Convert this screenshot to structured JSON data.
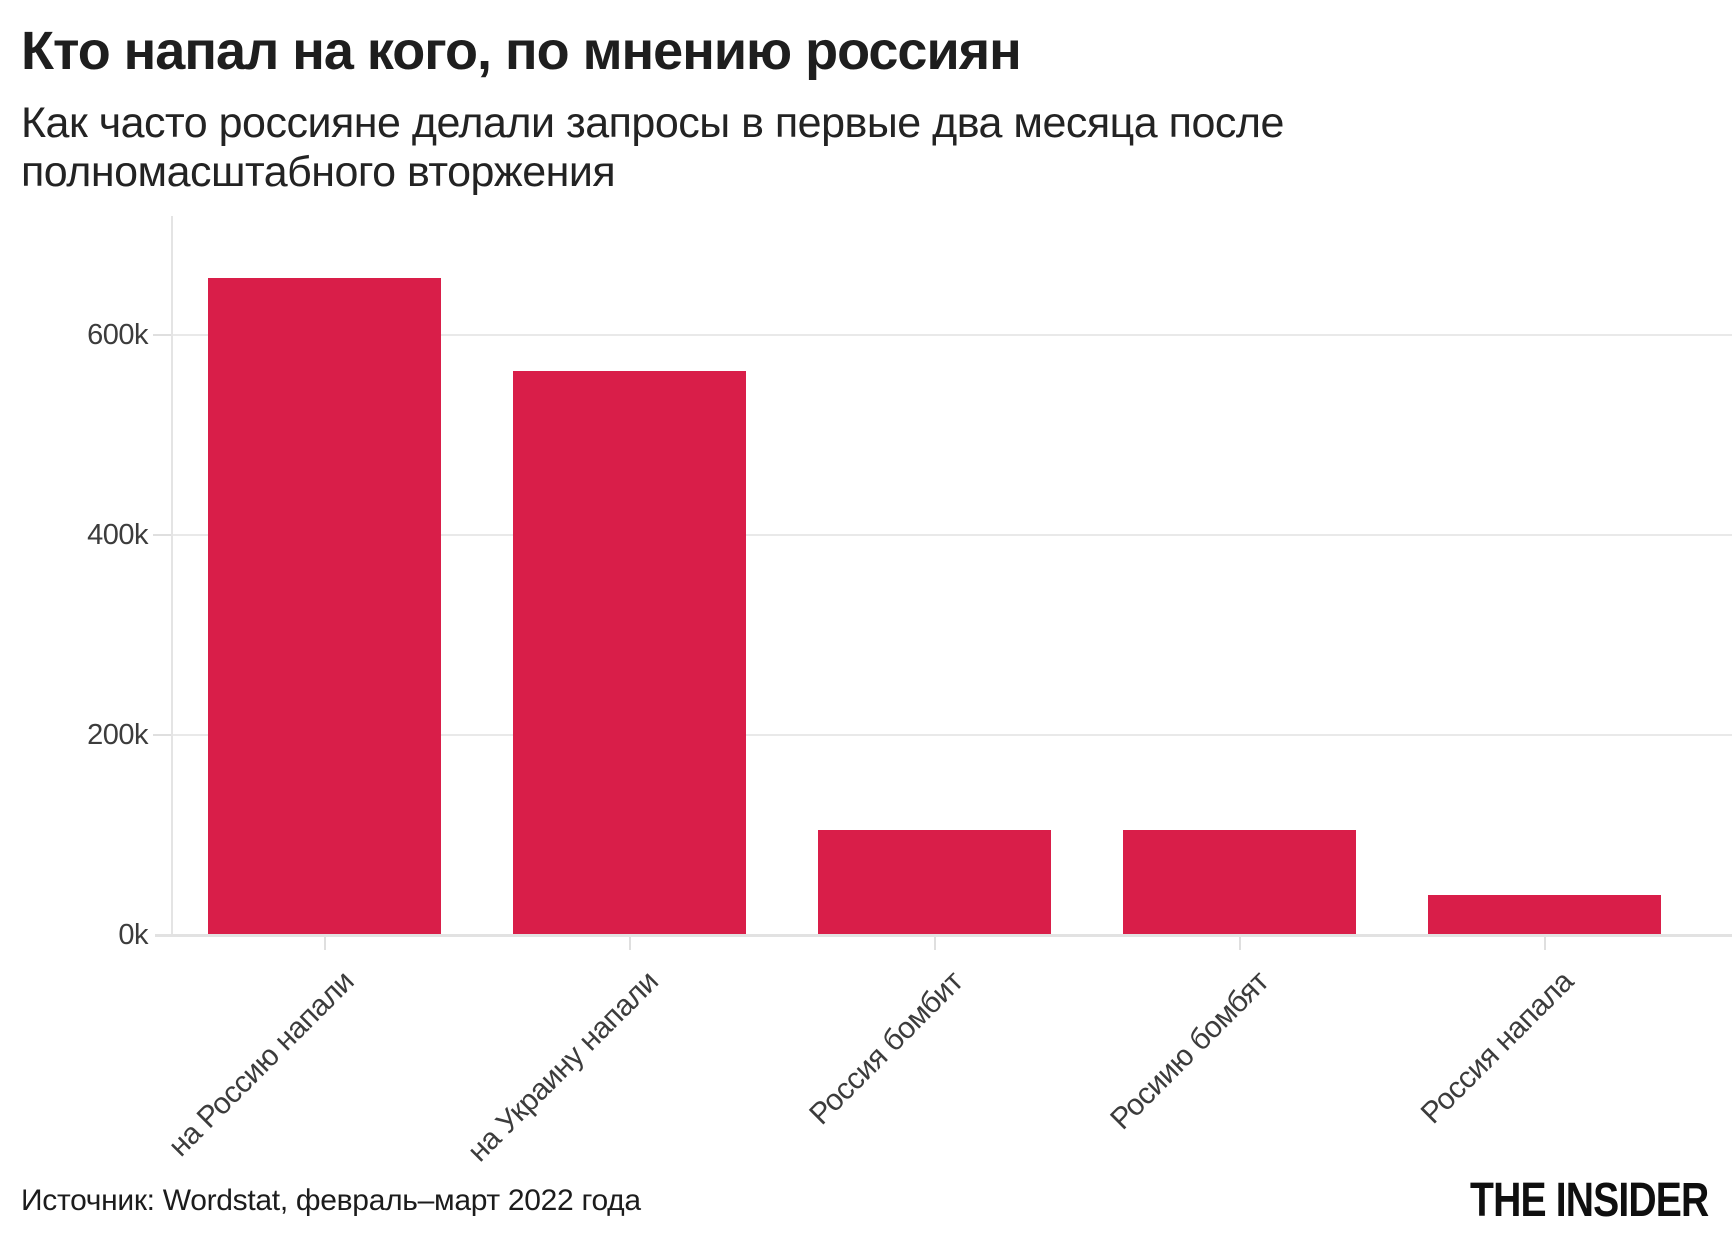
{
  "header": {
    "title": "Кто напал на кого, по мнению россиян",
    "subtitle_lines": [
      "Как часто россияне делали запросы в первые два месяца после",
      "полномасштабного вторжения"
    ]
  },
  "chart_data": {
    "type": "bar",
    "title": "Кто напал на кого, по мнению россиян",
    "subtitle": "Как часто россияне делали запросы в первые два месяца после полномасштабного вторжения",
    "categories": [
      "на Россию напали",
      "на Украину напали",
      "Россия бомбит",
      "Росиию бомбят",
      "Россия напала"
    ],
    "values": [
      657000,
      564000,
      105000,
      105000,
      40000
    ],
    "xlabel": "",
    "ylabel": "",
    "ylim": [
      0,
      680000
    ],
    "yticks": [
      {
        "value": 0,
        "label": "0k"
      },
      {
        "value": 200000,
        "label": "200k"
      },
      {
        "value": 400000,
        "label": "400k"
      },
      {
        "value": 600000,
        "label": "600k"
      }
    ],
    "grid": "horizontal",
    "legend_position": "none",
    "bar_color": "#d91e49",
    "x_label_angle_deg": 45
  },
  "footer": {
    "source": "Источник: Wordstat, февраль–март 2022 года",
    "brand": "THE INSIDER"
  },
  "colors": {
    "background": "#ffffff",
    "bar": "#d91e49",
    "gridline": "#e9e9e9",
    "axis_line": "#e2e2e2",
    "tick_text": "#3c3c3c",
    "title_text": "#1e1e1e"
  }
}
